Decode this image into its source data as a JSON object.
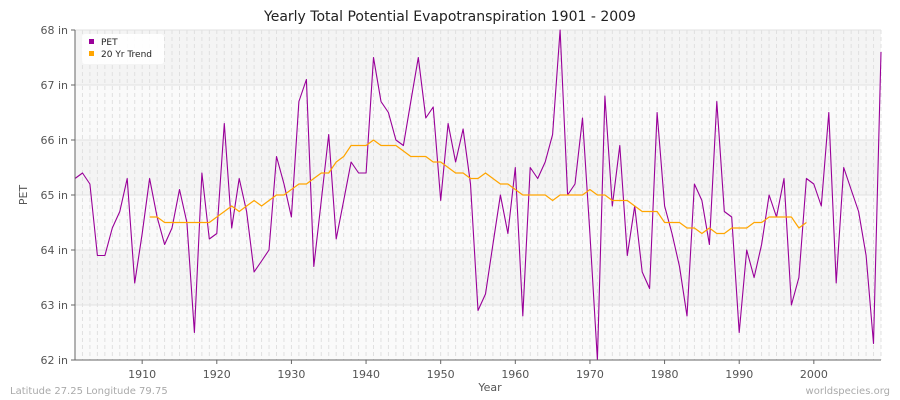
{
  "chart_data": {
    "type": "line",
    "title": "Yearly Total Potential Evapotranspiration 1901 - 2009",
    "xlabel": "Year",
    "ylabel": "PET",
    "xlim": [
      1901,
      2009
    ],
    "ylim": [
      62,
      68
    ],
    "y_unit": "in",
    "x_ticks": [
      1910,
      1920,
      1930,
      1940,
      1950,
      1960,
      1970,
      1980,
      1990,
      2000
    ],
    "y_ticks": [
      62,
      63,
      64,
      65,
      66,
      67,
      68
    ],
    "y_tick_labels": [
      "62 in",
      "63 in",
      "64 in",
      "65 in",
      "66 in",
      "67 in",
      "68 in"
    ],
    "grid": true,
    "legend_position": "top-left",
    "series": [
      {
        "name": "PET",
        "color": "#990099",
        "x_start": 1901,
        "values": [
          65.3,
          65.4,
          65.2,
          63.9,
          63.9,
          64.4,
          64.7,
          65.3,
          63.4,
          64.3,
          65.3,
          64.6,
          64.1,
          64.4,
          65.1,
          64.5,
          62.5,
          65.4,
          64.2,
          64.3,
          66.3,
          64.4,
          65.3,
          64.7,
          63.6,
          63.8,
          64.0,
          65.7,
          65.2,
          64.6,
          66.7,
          67.1,
          63.7,
          64.9,
          66.1,
          64.2,
          64.9,
          65.6,
          65.4,
          65.4,
          67.5,
          66.7,
          66.5,
          66.0,
          65.9,
          66.7,
          67.5,
          66.4,
          66.6,
          64.9,
          66.3,
          65.6,
          66.2,
          65.2,
          62.9,
          63.2,
          64.1,
          65.0,
          64.3,
          65.5,
          62.8,
          65.5,
          65.3,
          65.6,
          66.1,
          68.0,
          65.0,
          65.2,
          66.4,
          64.3,
          62.0,
          66.8,
          64.8,
          65.9,
          63.9,
          64.8,
          63.6,
          63.3,
          66.5,
          64.8,
          64.3,
          63.7,
          62.8,
          65.2,
          64.9,
          64.1,
          66.7,
          64.7,
          64.6,
          62.5,
          64.0,
          63.5,
          64.1,
          65.0,
          64.6,
          65.3,
          63.0,
          63.5,
          65.3,
          65.2,
          64.8,
          66.5,
          63.4,
          65.5,
          65.1,
          64.7,
          63.9,
          62.3,
          67.6
        ]
      },
      {
        "name": "20 Yr Trend",
        "color": "#ffa500",
        "x_start": 1911,
        "values": [
          64.6,
          64.6,
          64.5,
          64.5,
          64.5,
          64.5,
          64.5,
          64.5,
          64.5,
          64.6,
          64.7,
          64.8,
          64.7,
          64.8,
          64.9,
          64.8,
          64.9,
          65.0,
          65.0,
          65.1,
          65.2,
          65.2,
          65.3,
          65.4,
          65.4,
          65.6,
          65.7,
          65.9,
          65.9,
          65.9,
          66.0,
          65.9,
          65.9,
          65.9,
          65.8,
          65.7,
          65.7,
          65.7,
          65.6,
          65.6,
          65.5,
          65.4,
          65.4,
          65.3,
          65.3,
          65.4,
          65.3,
          65.2,
          65.2,
          65.1,
          65.0,
          65.0,
          65.0,
          65.0,
          64.9,
          65.0,
          65.0,
          65.0,
          65.0,
          65.1,
          65.0,
          65.0,
          64.9,
          64.9,
          64.9,
          64.8,
          64.7,
          64.7,
          64.7,
          64.5,
          64.5,
          64.5,
          64.4,
          64.4,
          64.3,
          64.4,
          64.3,
          64.3,
          64.4,
          64.4,
          64.4,
          64.5,
          64.5,
          64.6,
          64.6,
          64.6,
          64.6,
          64.4,
          64.5
        ]
      }
    ]
  },
  "footer": {
    "location": "Latitude 27.25 Longitude 79.75",
    "source": "worldspecies.org"
  }
}
